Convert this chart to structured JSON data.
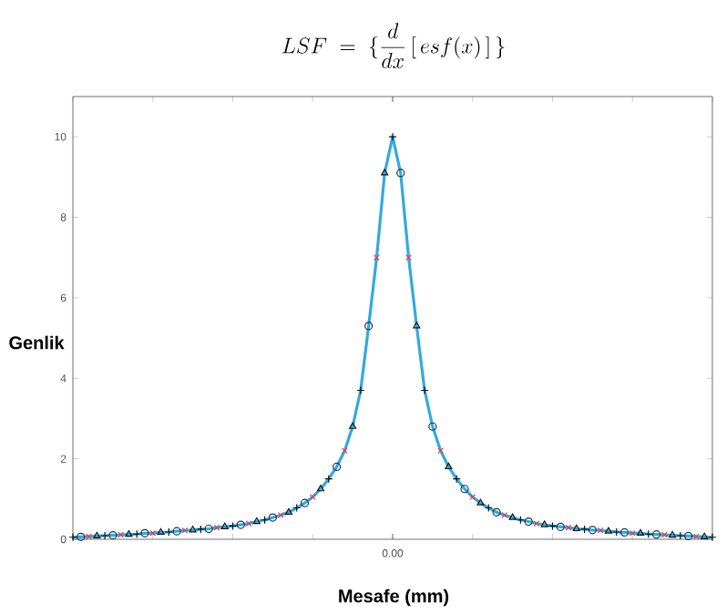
{
  "chart_data": {
    "type": "line",
    "title": "LSF \\;=\\; \\{\\frac{d}{dx}\\,[\\,esf(x)\\,]\\,\\}",
    "xlabel": "Mesafe (mm)",
    "ylabel": "Genlik",
    "categories": [
      null,
      null,
      null,
      null,
      null,
      null,
      null,
      null,
      null,
      null,
      null,
      null,
      null,
      null,
      null,
      null,
      null,
      null,
      null,
      null,
      null,
      null,
      null,
      null,
      null,
      null,
      null,
      null,
      null,
      null,
      null,
      null,
      null,
      null,
      null,
      null,
      null,
      null,
      null,
      null,
      null,
      null,
      null,
      null,
      null,
      null,
      null,
      null,
      null,
      null,
      null,
      null,
      null,
      null,
      null,
      null,
      null,
      null,
      null,
      null,
      null,
      null,
      null,
      null,
      null,
      null,
      null,
      null,
      null,
      null,
      null,
      null,
      null,
      null,
      null,
      null,
      null,
      null,
      null,
      null,
      null
    ],
    "ylim": [
      0,
      11
    ],
    "yticks": [
      0,
      2,
      4,
      6,
      8,
      10
    ],
    "grid": false,
    "legend": false,
    "annotations": [
      "0.00"
    ],
    "series": [
      {
        "color": "#33aadd",
        "marker": "none",
        "values": [
          0.05,
          0.06,
          0.07,
          0.08,
          0.09,
          0.1,
          0.11,
          0.12,
          0.13,
          0.15,
          0.15,
          0.17,
          0.18,
          0.2,
          0.22,
          0.23,
          0.25,
          0.26,
          0.29,
          0.31,
          0.33,
          0.36,
          0.39,
          0.44,
          0.48,
          0.54,
          0.6,
          0.67,
          0.78,
          0.9,
          1.05,
          1.25,
          1.5,
          1.8,
          2.2,
          2.8,
          3.7,
          5.3,
          7.0,
          9.1,
          10.0,
          9.1,
          7.0,
          5.3,
          3.7,
          2.8,
          2.2,
          1.8,
          1.5,
          1.25,
          1.05,
          0.9,
          0.78,
          0.67,
          0.6,
          0.54,
          0.48,
          0.44,
          0.39,
          0.36,
          0.33,
          0.31,
          0.29,
          0.26,
          0.25,
          0.23,
          0.22,
          0.2,
          0.18,
          0.17,
          0.15,
          0.15,
          0.13,
          0.12,
          0.11,
          0.1,
          0.09,
          0.08,
          0.07,
          0.06,
          0.05
        ]
      },
      {
        "type": "scatter",
        "color": "#111111",
        "marker": "plus",
        "values": [
          0.05,
          null,
          null,
          null,
          0.09,
          null,
          null,
          null,
          0.13,
          null,
          null,
          null,
          0.18,
          null,
          null,
          null,
          0.25,
          null,
          null,
          null,
          0.33,
          null,
          null,
          null,
          0.48,
          null,
          null,
          null,
          0.78,
          null,
          null,
          null,
          1.5,
          null,
          null,
          null,
          3.7,
          null,
          null,
          null,
          10.0,
          null,
          null,
          null,
          3.7,
          null,
          null,
          null,
          1.5,
          null,
          null,
          null,
          0.78,
          null,
          null,
          null,
          0.48,
          null,
          null,
          null,
          0.33,
          null,
          null,
          null,
          0.25,
          null,
          null,
          null,
          0.18,
          null,
          null,
          null,
          0.13,
          null,
          null,
          null,
          0.09,
          null,
          null,
          null,
          0.05
        ]
      },
      {
        "type": "scatter",
        "color": "#1a3550",
        "marker": "circle",
        "values": [
          null,
          0.06,
          null,
          null,
          null,
          0.1,
          null,
          null,
          null,
          0.15,
          null,
          null,
          null,
          0.2,
          null,
          null,
          null,
          0.26,
          null,
          null,
          null,
          0.36,
          null,
          null,
          null,
          0.54,
          null,
          null,
          null,
          0.9,
          null,
          null,
          null,
          1.8,
          null,
          null,
          null,
          5.3,
          null,
          null,
          null,
          9.1,
          null,
          null,
          null,
          2.8,
          null,
          null,
          null,
          1.25,
          null,
          null,
          null,
          0.67,
          null,
          null,
          null,
          0.44,
          null,
          null,
          null,
          0.31,
          null,
          null,
          null,
          0.23,
          null,
          null,
          null,
          0.17,
          null,
          null,
          null,
          0.12,
          null,
          null,
          null,
          0.08,
          null,
          null,
          null
        ]
      },
      {
        "type": "scatter",
        "color": "#e0404a",
        "marker": "cross",
        "values": [
          null,
          null,
          0.07,
          null,
          null,
          null,
          0.11,
          null,
          null,
          null,
          0.15,
          null,
          null,
          null,
          0.22,
          null,
          null,
          null,
          0.29,
          null,
          null,
          null,
          0.39,
          null,
          null,
          null,
          0.6,
          null,
          null,
          null,
          1.05,
          null,
          null,
          null,
          2.2,
          null,
          null,
          null,
          7.0,
          null,
          null,
          null,
          7.0,
          null,
          null,
          null,
          2.2,
          null,
          null,
          null,
          1.05,
          null,
          null,
          null,
          0.6,
          null,
          null,
          null,
          0.39,
          null,
          null,
          null,
          0.29,
          null,
          null,
          null,
          0.22,
          null,
          null,
          null,
          0.15,
          null,
          null,
          null,
          0.11,
          null,
          null,
          null,
          0.07,
          null,
          null
        ]
      },
      {
        "type": "scatter",
        "color": "#111111",
        "marker": "triangle",
        "values": [
          null,
          null,
          null,
          0.08,
          null,
          null,
          null,
          0.12,
          null,
          null,
          null,
          0.17,
          null,
          null,
          null,
          0.23,
          null,
          null,
          null,
          0.31,
          null,
          null,
          null,
          0.44,
          null,
          null,
          null,
          0.67,
          null,
          null,
          null,
          1.25,
          null,
          null,
          null,
          2.8,
          null,
          null,
          null,
          9.1,
          null,
          null,
          null,
          5.3,
          null,
          null,
          null,
          1.8,
          null,
          null,
          null,
          0.9,
          null,
          null,
          null,
          0.54,
          null,
          null,
          null,
          0.36,
          null,
          null,
          null,
          0.26,
          null,
          null,
          null,
          0.2,
          null,
          null,
          null,
          0.15,
          null,
          null,
          null,
          0.1,
          null,
          null,
          null,
          0.06,
          null
        ]
      }
    ]
  }
}
